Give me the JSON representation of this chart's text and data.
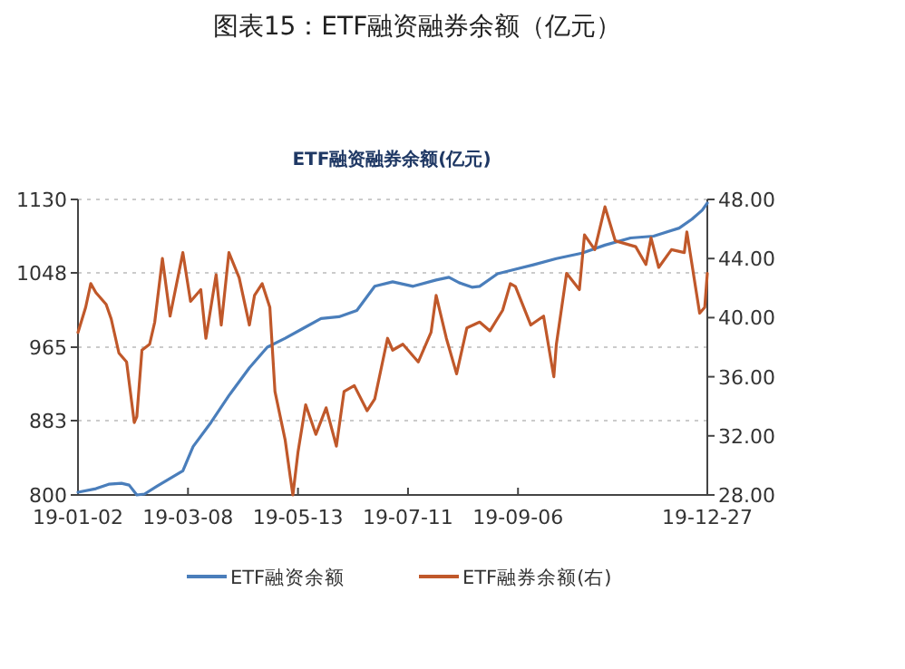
{
  "chart_data": {
    "type": "line",
    "title": "图表15：ETF融资融券余额（亿元）",
    "subtitle": "ETF融资融券余额(亿元)",
    "categories": [
      "19-01-02",
      null,
      null,
      null,
      null,
      null,
      null,
      null,
      null,
      null,
      null,
      null,
      null,
      null,
      null,
      null,
      null,
      null,
      null,
      null,
      null,
      null,
      null,
      null,
      null,
      null,
      null,
      null,
      null,
      null,
      null,
      null,
      null,
      null,
      null,
      null,
      null,
      null,
      null,
      null,
      null,
      null,
      null,
      "19-03-08",
      null,
      null,
      null,
      null,
      null,
      null,
      null,
      null,
      null,
      null,
      null,
      null,
      null,
      null,
      null,
      null,
      null,
      null,
      null,
      null,
      null,
      null,
      null,
      null,
      null,
      null,
      null,
      null,
      null,
      null,
      null,
      null,
      null,
      null,
      null,
      null,
      null,
      null,
      null,
      null,
      null,
      null,
      "19-05-13",
      null,
      null,
      null,
      null,
      null,
      null,
      null,
      null,
      null,
      null,
      null,
      null,
      null,
      null,
      null,
      null,
      null,
      null,
      null,
      null,
      null,
      null,
      null,
      null,
      null,
      null,
      null,
      null,
      null,
      null,
      null,
      null,
      null,
      null,
      null,
      null,
      null,
      null,
      null,
      null,
      null,
      null,
      "19-07-11",
      null,
      null,
      null,
      null,
      null,
      null,
      null,
      null,
      null,
      null,
      null,
      null,
      null,
      null,
      null,
      null,
      null,
      null,
      null,
      null,
      null,
      null,
      null,
      null,
      null,
      null,
      null,
      null,
      null,
      null,
      null,
      null,
      null,
      null,
      null,
      null,
      null,
      null,
      null,
      null,
      null,
      null,
      "19-09-06",
      null,
      null,
      null,
      null,
      null,
      null,
      null,
      null,
      null,
      null,
      null,
      null,
      null,
      null,
      null,
      null,
      null,
      null,
      null,
      null,
      null,
      null,
      null,
      null,
      null,
      null,
      null,
      null,
      null,
      null,
      null,
      null,
      null,
      null,
      null,
      null,
      null,
      null,
      null,
      null,
      null,
      null,
      null,
      null,
      null,
      null,
      null,
      null,
      null,
      null,
      null,
      null,
      null,
      null,
      null,
      null,
      null,
      null,
      null,
      null,
      null,
      null,
      null,
      null,
      null,
      null,
      null,
      null,
      null,
      null,
      null,
      null,
      null,
      "19-12-27"
    ],
    "ylim": [
      800,
      1130
    ],
    "yticks": [
      800,
      883,
      965,
      1048,
      1130
    ],
    "y2lim": [
      28,
      48
    ],
    "y2ticks": [
      {
        "value": 28,
        "label": "28.00"
      },
      {
        "value": 32,
        "label": "32.00"
      },
      {
        "value": 36,
        "label": "36.00"
      },
      {
        "value": 40,
        "label": "40.00"
      },
      {
        "value": 44,
        "label": "44.00"
      },
      {
        "value": 48,
        "label": "48.00"
      }
    ],
    "grid": "y",
    "legend": "bottom",
    "series": [
      {
        "name": "ETF融资余额",
        "color": "#4a7ebb",
        "values": [
          803,
          null,
          null,
          null,
          null,
          null,
          null,
          807,
          null,
          null,
          null,
          null,
          812,
          null,
          null,
          null,
          null,
          813,
          null,
          null,
          811,
          null,
          null,
          800,
          null,
          null,
          801,
          null,
          null,
          null,
          null,
          810,
          null,
          null,
          null,
          null,
          null,
          null,
          null,
          null,
          null,
          827,
          null,
          null,
          null,
          854,
          null,
          null,
          null,
          null,
          null,
          null,
          881,
          null,
          null,
          null,
          null,
          null,
          null,
          911,
          null,
          null,
          null,
          null,
          null,
          null,
          null,
          942,
          null,
          null,
          null,
          null,
          null,
          null,
          965,
          null,
          null,
          null,
          null,
          null,
          null,
          975,
          null,
          null,
          null,
          null,
          null,
          null,
          986,
          null,
          null,
          null,
          null,
          null,
          null,
          997,
          null,
          null,
          null,
          null,
          null,
          null,
          999,
          null,
          null,
          null,
          null,
          null,
          null,
          1006,
          null,
          null,
          null,
          null,
          null,
          null,
          1033,
          null,
          null,
          null,
          null,
          null,
          null,
          1038,
          null,
          null,
          null,
          null,
          null,
          null,
          null,
          1033,
          null,
          null,
          null,
          null,
          null,
          null,
          null,
          null,
          1040,
          null,
          null,
          null,
          null,
          1043,
          null,
          null,
          null,
          1037,
          null,
          null,
          null,
          null,
          1032,
          null,
          null,
          1033,
          null,
          null,
          null,
          null,
          null,
          null,
          1047,
          null,
          null,
          null,
          null,
          null,
          null,
          1052,
          null,
          null,
          null,
          null,
          null,
          null,
          1057,
          null,
          null,
          null,
          null,
          null,
          null,
          null,
          null,
          1064,
          null,
          null,
          null,
          null,
          null,
          null,
          null,
          null,
          null,
          1070,
          null,
          null,
          null,
          null,
          null,
          null,
          null,
          null,
          1079,
          null,
          null,
          null,
          null,
          null,
          null,
          null,
          null,
          null,
          1087,
          null,
          null,
          null,
          null,
          null,
          null,
          null,
          null,
          1089,
          null,
          null,
          null,
          null,
          null,
          null,
          null,
          null,
          null,
          1098,
          null,
          null,
          null,
          null,
          1108,
          null,
          null,
          null,
          1118,
          null,
          1126
        ]
      },
      {
        "name": "ETF融券余额(右)",
        "color": "#c0582a",
        "axis": "y2",
        "values": [
          39.0,
          null,
          null,
          40.7,
          null,
          42.3,
          null,
          41.7,
          null,
          null,
          null,
          40.9,
          null,
          39.9,
          null,
          null,
          37.6,
          null,
          null,
          37.0,
          null,
          null,
          32.9,
          33.3,
          null,
          37.8,
          null,
          null,
          38.2,
          null,
          39.7,
          null,
          null,
          44.0,
          null,
          null,
          40.1,
          null,
          null,
          null,
          null,
          44.4,
          null,
          null,
          41.1,
          null,
          null,
          null,
          41.9,
          null,
          38.6,
          null,
          null,
          null,
          42.9,
          null,
          39.5,
          null,
          null,
          44.4,
          null,
          null,
          null,
          42.7,
          null,
          null,
          null,
          39.5,
          null,
          41.5,
          null,
          null,
          42.3,
          null,
          null,
          40.7,
          null,
          35.0,
          null,
          null,
          null,
          31.7,
          null,
          29.2,
          28.0,
          null,
          30.9,
          null,
          null,
          34.1,
          null,
          null,
          null,
          32.1,
          null,
          null,
          null,
          33.9,
          null,
          null,
          null,
          31.3,
          null,
          null,
          35.0,
          null,
          null,
          null,
          35.4,
          null,
          null,
          null,
          null,
          33.7,
          null,
          null,
          34.5,
          null,
          null,
          null,
          null,
          38.6,
          null,
          37.8,
          null,
          null,
          null,
          38.2,
          null,
          null,
          null,
          null,
          null,
          37.0,
          null,
          null,
          null,
          null,
          39.0,
          null,
          41.5,
          null,
          null,
          null,
          38.6,
          null,
          null,
          null,
          36.2,
          null,
          null,
          null,
          39.3,
          null,
          null,
          null,
          null,
          39.7,
          null,
          null,
          null,
          39.1,
          null,
          null,
          null,
          null,
          40.5,
          null,
          null,
          42.3,
          null,
          42.1,
          null,
          null,
          null,
          null,
          null,
          39.5,
          null,
          null,
          null,
          null,
          40.1,
          null,
          null,
          37.0,
          36.0,
          38.2,
          null,
          null,
          null,
          43.0,
          null,
          null,
          null,
          null,
          41.9,
          null,
          45.6,
          null,
          null,
          null,
          44.6,
          null,
          null,
          null,
          47.5,
          null,
          null,
          null,
          45.2,
          null,
          null,
          null,
          null,
          null,
          null,
          null,
          44.8,
          null,
          null,
          null,
          43.6,
          null,
          45.4,
          null,
          null,
          43.4,
          null,
          null,
          null,
          null,
          44.6,
          null,
          null,
          null,
          null,
          44.4,
          45.8,
          null,
          null,
          null,
          null,
          40.3,
          null,
          40.7,
          43.0
        ]
      }
    ]
  }
}
